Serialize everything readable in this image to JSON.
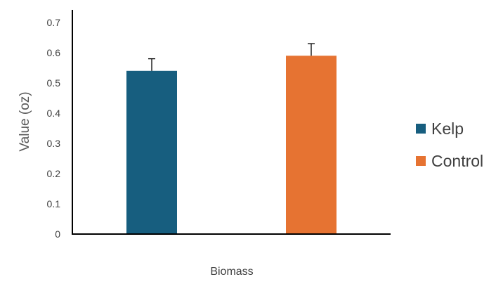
{
  "chart_data": {
    "type": "bar",
    "title": "",
    "xlabel": "Biomass",
    "ylabel": "Value (oz)",
    "ylim": [
      0,
      0.75
    ],
    "yticks": [
      "0",
      "0.1",
      "0.2",
      "0.3",
      "0.4",
      "0.5",
      "0.6",
      "0.7"
    ],
    "grid": false,
    "legend_position": "right",
    "series": [
      {
        "name": "Kelp",
        "value": 0.54,
        "error": 0.04,
        "color": "#175e7f"
      },
      {
        "name": "Control",
        "value": 0.59,
        "error": 0.04,
        "color": "#e67332"
      }
    ]
  }
}
